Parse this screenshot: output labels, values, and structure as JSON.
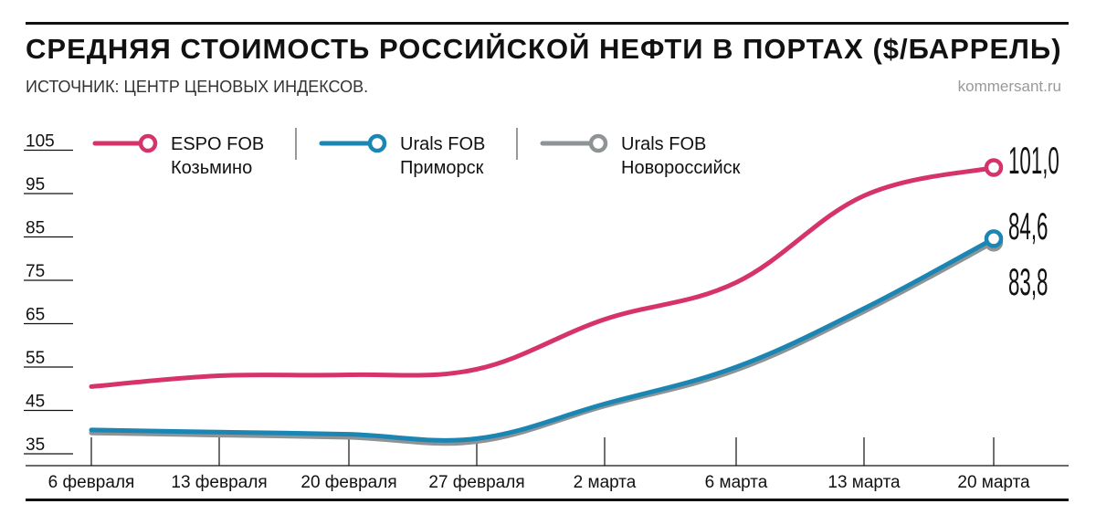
{
  "header": {
    "title": "СРЕДНЯЯ СТОИМОСТЬ РОССИЙСКОЙ НЕФТИ В ПОРТАХ ($/БАРРЕЛЬ)",
    "source": "ИСТОЧНИК: ЦЕНТР ЦЕНОВЫХ ИНДЕКСОВ.",
    "brand": "kommersant.ru"
  },
  "chart_data": {
    "type": "line",
    "title": "СРЕДНЯЯ СТОИМОСТЬ РОССИЙСКОЙ НЕФТИ В ПОРТАХ ($/БАРРЕЛЬ)",
    "xlabel": "",
    "ylabel": "",
    "categories": [
      "6 февраля",
      "13 февраля",
      "20 февраля",
      "27 февраля",
      "2 марта",
      "6 марта",
      "13 марта",
      "20 марта"
    ],
    "yticks": [
      35,
      45,
      55,
      65,
      75,
      85,
      95,
      105
    ],
    "ylim": [
      35,
      110
    ],
    "grid": false,
    "legend_position": "top",
    "series": [
      {
        "name": "ESPO FOB",
        "name_line2": "Козьмино",
        "color": "#d6336c",
        "values": [
          50.5,
          53.0,
          53.2,
          54.5,
          66.0,
          74.5,
          94.5,
          101.0
        ],
        "end_label": "101,0"
      },
      {
        "name": "Urals FOB",
        "name_line2": "Приморск",
        "color": "#1b86b3",
        "values": [
          40.5,
          40.0,
          39.5,
          38.5,
          46.5,
          55.0,
          68.5,
          84.6
        ],
        "end_label": "84,6"
      },
      {
        "name": "Urals FOB",
        "name_line2": "Новороссийск",
        "color": "#8e9396",
        "values": [
          39.8,
          39.3,
          38.8,
          37.8,
          46.0,
          54.3,
          67.8,
          83.8
        ],
        "end_label": "83,8"
      }
    ]
  }
}
